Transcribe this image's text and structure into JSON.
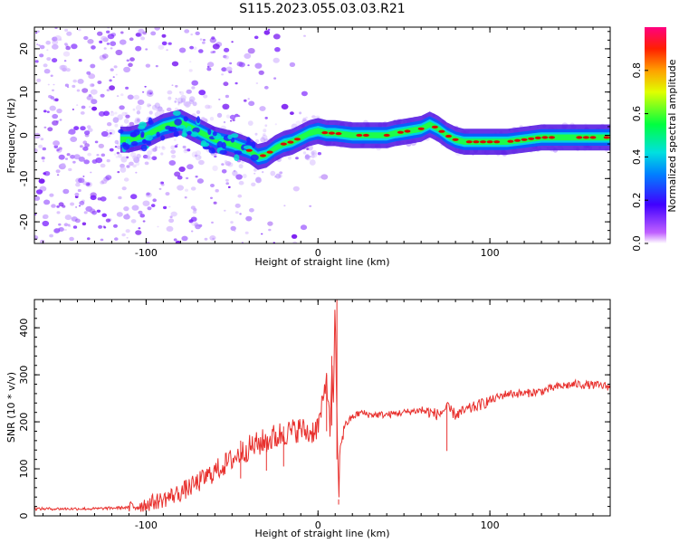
{
  "title": "S115.2023.055.03.03.R21",
  "colors": {
    "snr_line": "#e8312e",
    "axes": "#000000",
    "spectrum_ridge": "#e00000"
  },
  "chart_data": [
    {
      "type": "heatmap",
      "xlabel": "Height of straight line (km)",
      "ylabel": "Frequency (Hz)",
      "xlim": [
        -165,
        170
      ],
      "ylim": [
        -25,
        25
      ],
      "x_ticks": [
        -100,
        0,
        100
      ],
      "y_ticks": [
        -20,
        -10,
        0,
        10,
        20
      ],
      "colorbar": {
        "label": "Normalized spectral amplitude",
        "range": [
          0.0,
          1.0
        ],
        "ticks": [
          "0.0",
          "0.2",
          "0.4",
          "0.6",
          "0.8"
        ],
        "colormap": "rainbow (purple to red)"
      },
      "ridge": {
        "x": [
          -110,
          -100,
          -90,
          -80,
          -70,
          -60,
          -50,
          -40,
          -35,
          -30,
          -25,
          -20,
          -15,
          -10,
          -5,
          0,
          5,
          10,
          20,
          30,
          40,
          45,
          50,
          60,
          65,
          70,
          75,
          80,
          85,
          90,
          95,
          100,
          110,
          120,
          130,
          140,
          150,
          160,
          170
        ],
        "y": [
          -1,
          0,
          2,
          3,
          1,
          -1,
          -2,
          -3.5,
          -5,
          -4.5,
          -3,
          -2,
          -1.5,
          -0.5,
          0.5,
          1,
          0.5,
          0.5,
          0,
          0,
          0,
          0.5,
          0.8,
          1.5,
          2.5,
          1.5,
          0,
          -1,
          -1.5,
          -1.5,
          -1.5,
          -1.5,
          -1.5,
          -1,
          -0.5,
          -0.5,
          -0.5,
          -0.5,
          -0.5
        ]
      }
    },
    {
      "type": "line",
      "xlabel": "Height of straight line (km)",
      "ylabel": "SNR (10 * v/v)",
      "xlim": [
        -165,
        170
      ],
      "ylim": [
        0,
        460
      ],
      "x_ticks": [
        -100,
        0,
        100
      ],
      "y_ticks": [
        0,
        100,
        200,
        300,
        400
      ],
      "series": [
        {
          "x": [
            -165,
            -150,
            -130,
            -110,
            -100,
            -90,
            -80,
            -70,
            -60,
            -50,
            -40,
            -30,
            -20,
            -10,
            -5,
            0,
            3,
            5,
            7,
            8,
            9,
            10,
            11,
            12,
            13,
            15,
            20,
            25,
            30,
            40,
            50,
            60,
            70,
            75,
            80,
            90,
            100,
            110,
            120,
            130,
            140,
            150,
            160,
            170
          ],
          "values": [
            15,
            15,
            15,
            18,
            25,
            35,
            50,
            70,
            95,
            120,
            145,
            160,
            175,
            185,
            175,
            190,
            240,
            300,
            180,
            320,
            220,
            460,
            200,
            40,
            150,
            190,
            210,
            220,
            215,
            215,
            220,
            225,
            215,
            230,
            215,
            230,
            245,
            260,
            260,
            265,
            275,
            280,
            278,
            275
          ]
        }
      ],
      "spikes": [
        {
          "x": -45,
          "y": 160
        },
        {
          "x": -30,
          "y": 155
        },
        {
          "x": -20,
          "y": 190
        },
        {
          "x": 5,
          "y": 300
        },
        {
          "x": 8,
          "y": 340
        },
        {
          "x": 11,
          "y": 460
        },
        {
          "x": 12,
          "y": 35
        },
        {
          "x": 75,
          "y": 240
        }
      ]
    }
  ]
}
